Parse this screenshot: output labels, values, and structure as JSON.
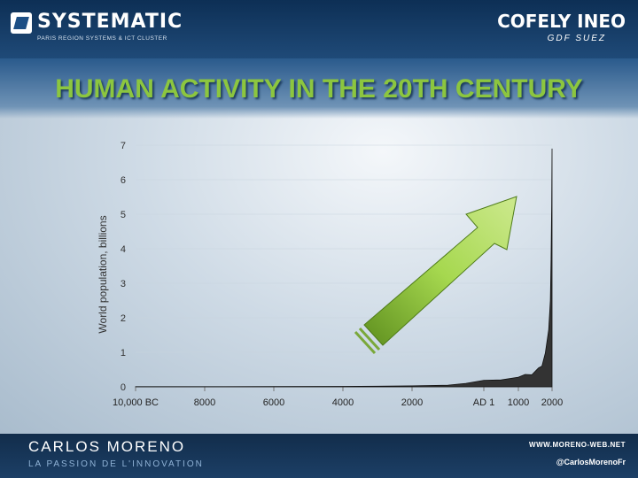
{
  "header": {
    "left_logo": {
      "name": "SYSTEMATIC",
      "subtitle": "PARIS REGION SYSTEMS & ICT CLUSTER"
    },
    "right_logo": {
      "name": "COFELY INEO",
      "subtitle": "GDF SUEZ"
    }
  },
  "slide": {
    "title": "HUMAN ACTIVITY IN THE 20TH CENTURY"
  },
  "chart_data": {
    "type": "area",
    "title": "",
    "ylabel": "World population, billions",
    "xlabel": "",
    "ylim": [
      0,
      7
    ],
    "yticks": [
      "0",
      "1",
      "2",
      "3",
      "4",
      "5",
      "6",
      "7"
    ],
    "xtick_labels": [
      "10,000 BC",
      "8000",
      "6000",
      "4000",
      "2000",
      "AD 1",
      "1000",
      "2000"
    ],
    "x": [
      -10000,
      -8000,
      -6000,
      -4000,
      -3000,
      -2000,
      -1000,
      -500,
      1,
      500,
      1000,
      1200,
      1400,
      1600,
      1700,
      1800,
      1900,
      1950,
      1970,
      1990,
      2000
    ],
    "values": [
      0.004,
      0.005,
      0.007,
      0.012,
      0.018,
      0.027,
      0.05,
      0.1,
      0.19,
      0.2,
      0.28,
      0.36,
      0.35,
      0.55,
      0.6,
      0.98,
      1.65,
      2.5,
      3.7,
      5.3,
      6.9
    ],
    "annotation": "green upward arrow",
    "colors": {
      "area": "#333333",
      "arrow": "#8cc63f",
      "title": "#8cc63f"
    }
  },
  "footer": {
    "name": "CARLOS MORENO",
    "tagline": "LA PASSION DE L'INNOVATION",
    "website": "WWW.MORENO-WEB.NET",
    "twitter": "@CarlosMorenoFr"
  }
}
